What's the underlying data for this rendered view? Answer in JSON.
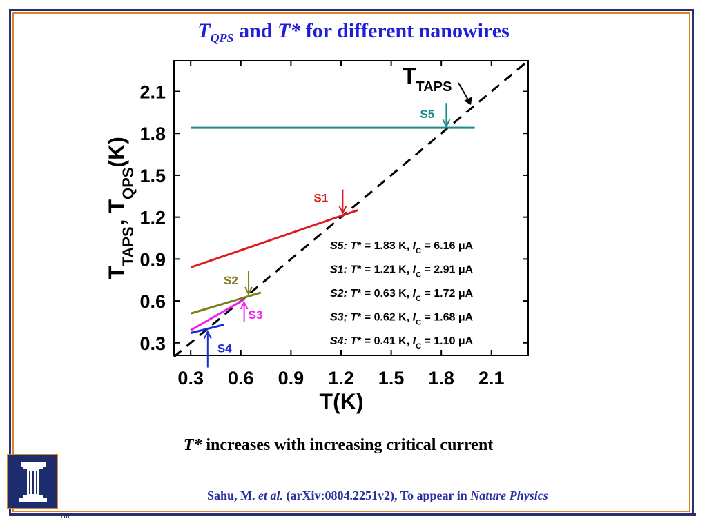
{
  "slide": {
    "title_parts": [
      "T",
      "QPS",
      " and ",
      "T*",
      " for different nanowires"
    ],
    "caption_parts": [
      "T*",
      " increases with increasing critical current"
    ],
    "citation_parts": [
      "Sahu, M. ",
      "et al.",
      " (arXiv:0804.2251v2), To appear in ",
      "Nature Physics"
    ],
    "logo_mark": "TM",
    "colors": {
      "title": "#1f1fd6",
      "citation": "#2b2d9e",
      "frame_blue": "#2b2d6e",
      "frame_orange": "#d9862a"
    }
  },
  "chart_data": {
    "type": "line",
    "xlabel": "T(K)",
    "ylabel_parts": [
      "T",
      "TAPS",
      ", T",
      "QPS",
      "(K)"
    ],
    "xlim": [
      0.2,
      2.32
    ],
    "ylim": [
      0.21,
      2.32
    ],
    "xticks": [
      "0.3",
      "0.6",
      "0.9",
      "1.2",
      "1.5",
      "1.8",
      "2.1"
    ],
    "yticks": [
      "0.3",
      "0.6",
      "0.9",
      "1.2",
      "1.5",
      "1.8",
      "2.1"
    ],
    "reference_line": {
      "name": "T_TAPS",
      "label_parts": [
        "T",
        "TAPS"
      ],
      "x": [
        0.2,
        2.32
      ],
      "y": [
        0.2,
        2.32
      ],
      "style": "dashed",
      "color": "#000000"
    },
    "series": [
      {
        "name": "S5",
        "color": "#1a8a8a",
        "x": [
          0.3,
          2.0
        ],
        "y": [
          1.84,
          1.84
        ],
        "arrow": "down",
        "T_star": 1.83
      },
      {
        "name": "S1",
        "color": "#e01b1b",
        "x": [
          0.3,
          1.3
        ],
        "y": [
          0.84,
          1.25
        ],
        "arrow": "down",
        "T_star": 1.21
      },
      {
        "name": "S2",
        "color": "#7d7d18",
        "x": [
          0.3,
          0.72
        ],
        "y": [
          0.51,
          0.66
        ],
        "arrow": "down",
        "T_star": 0.63
      },
      {
        "name": "S3",
        "color": "#ee22ee",
        "x": [
          0.3,
          0.62
        ],
        "y": [
          0.39,
          0.61
        ],
        "arrow": "up",
        "T_star": 0.62
      },
      {
        "name": "S4",
        "color": "#1a2ed6",
        "x": [
          0.3,
          0.5
        ],
        "y": [
          0.37,
          0.43
        ],
        "arrow": "up",
        "T_star": 0.41
      }
    ],
    "annotations": [
      {
        "sample": "S5:",
        "T_star": "1.83 K",
        "Ic": "6.16",
        "unit": "μA",
        "sep": ","
      },
      {
        "sample": "S1:",
        "T_star": "1.21 K",
        "Ic": "2.91",
        "unit": "μA",
        "sep": ","
      },
      {
        "sample": "S2:",
        "T_star": "0.63 K",
        "Ic": "1.72",
        "unit": "μA",
        "sep": ","
      },
      {
        "sample": "S3;",
        "T_star": "0.62 K",
        "Ic": "1.68",
        "unit": "μA",
        "sep": ","
      },
      {
        "sample": "S4:",
        "T_star": "0.41 K",
        "Ic": "1.10",
        "unit": "μA",
        "sep": ","
      }
    ]
  }
}
